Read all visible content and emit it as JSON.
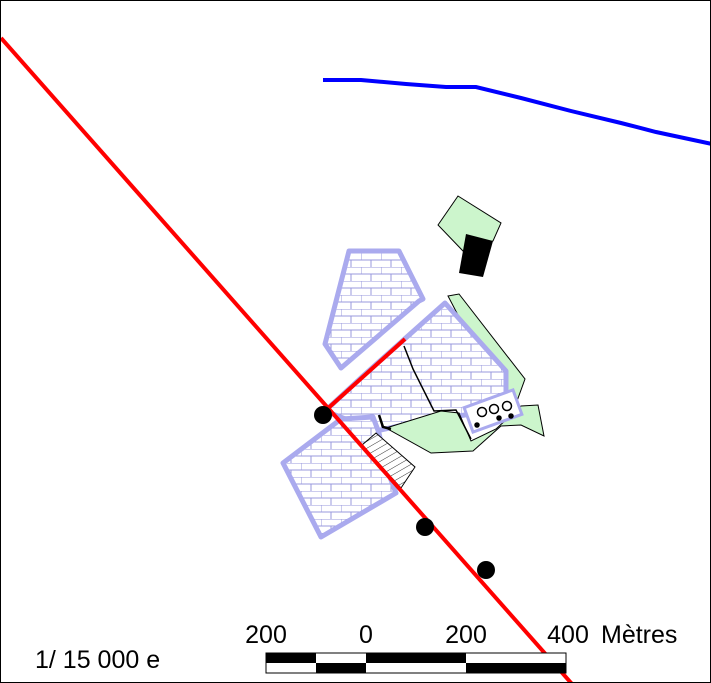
{
  "scale": {
    "ratio_label": "1/ 15 000 e",
    "ticks": [
      "200",
      "0",
      "200",
      "400"
    ],
    "units": "Mètres"
  },
  "colors": {
    "road": "#ff0000",
    "river": "#0000ff",
    "built_area_stroke": "#aaaaee",
    "brick_pattern": "#9999dd",
    "vegetation_fill": "#ccf5cc",
    "building": "#000000"
  }
}
